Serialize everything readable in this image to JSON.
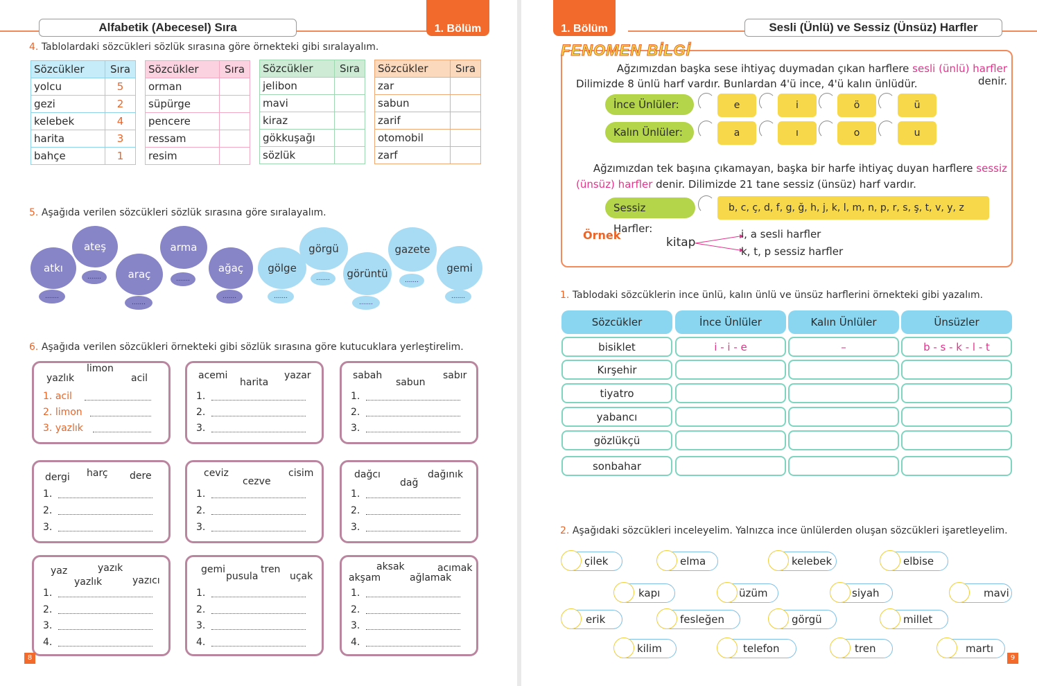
{
  "left": {
    "chapter": "1. Bölüm",
    "title": "Alfabetik (Abecesel) Sıra",
    "q4": {
      "num": "4.",
      "text": "Tablolardaki sözcükleri sözlük sırasına göre örnekteki gibi sıralayalım."
    },
    "tables": [
      {
        "h1": "Sözcükler",
        "h2": "Sıra",
        "rows": [
          [
            "yolcu",
            "5"
          ],
          [
            "gezi",
            "2"
          ],
          [
            "kelebek",
            "4"
          ],
          [
            "harita",
            "3"
          ],
          [
            "bahçe",
            "1"
          ]
        ]
      },
      {
        "h1": "Sözcükler",
        "h2": "Sıra",
        "rows": [
          [
            "orman",
            ""
          ],
          [
            "süpürge",
            ""
          ],
          [
            "pencere",
            ""
          ],
          [
            "ressam",
            ""
          ],
          [
            "resim",
            ""
          ]
        ]
      },
      {
        "h1": "Sözcükler",
        "h2": "Sıra",
        "rows": [
          [
            "jelibon",
            ""
          ],
          [
            "mavi",
            ""
          ],
          [
            "kiraz",
            ""
          ],
          [
            "gökkuşağı",
            ""
          ],
          [
            "sözlük",
            ""
          ]
        ]
      },
      {
        "h1": "Sözcükler",
        "h2": "Sıra",
        "rows": [
          [
            "zar",
            ""
          ],
          [
            "sabun",
            ""
          ],
          [
            "zarif",
            ""
          ],
          [
            "otomobil",
            ""
          ],
          [
            "zarf",
            ""
          ]
        ]
      }
    ],
    "q5": {
      "num": "5.",
      "text": "Aşağıda verilen sözcükleri sözlük sırasına göre sıralayalım."
    },
    "stones_purple": [
      "atkı",
      "ateş",
      "araç",
      "arma",
      "ağaç"
    ],
    "stones_blue": [
      "gölge",
      "görgü",
      "görüntü",
      "gazete",
      "gemi"
    ],
    "blank_dots": ".......",
    "q6": {
      "num": "6.",
      "text": "Aşağıda verilen sözcükleri örnekteki gibi sözlük sırasına göre kutucuklara yerleştirelim."
    },
    "boxes": [
      {
        "words": [
          "yazlık",
          "limon",
          "acil"
        ],
        "nums": [
          "1.",
          "2.",
          "3."
        ],
        "answers": [
          "acil",
          "limon",
          "yazlık"
        ]
      },
      {
        "words": [
          "acemi",
          "harita",
          "yazar"
        ],
        "nums": [
          "1.",
          "2.",
          "3."
        ],
        "answers": [
          "",
          "",
          ""
        ]
      },
      {
        "words": [
          "sabah",
          "sabun",
          "sabır"
        ],
        "nums": [
          "1.",
          "2.",
          "3."
        ],
        "answers": [
          "",
          "",
          ""
        ]
      },
      {
        "words": [
          "dergi",
          "harç",
          "dere"
        ],
        "nums": [
          "1.",
          "2.",
          "3."
        ],
        "answers": [
          "",
          "",
          ""
        ]
      },
      {
        "words": [
          "ceviz",
          "cezve",
          "cisim"
        ],
        "nums": [
          "1.",
          "2.",
          "3."
        ],
        "answers": [
          "",
          "",
          ""
        ]
      },
      {
        "words": [
          "dağcı",
          "dağ",
          "dağınık"
        ],
        "nums": [
          "1.",
          "2.",
          "3."
        ],
        "answers": [
          "",
          "",
          ""
        ]
      },
      {
        "words": [
          "yaz",
          "yazık",
          "yazlık",
          "yazıcı"
        ],
        "nums": [
          "1.",
          "2.",
          "3.",
          "4."
        ],
        "answers": [
          "",
          "",
          "",
          ""
        ]
      },
      {
        "words": [
          "gemi",
          "pusula",
          "tren",
          "uçak"
        ],
        "nums": [
          "1.",
          "2.",
          "3.",
          "4."
        ],
        "answers": [
          "",
          "",
          "",
          ""
        ]
      },
      {
        "words": [
          "akşam",
          "aksak",
          "ağlamak",
          "acımak"
        ],
        "nums": [
          "1.",
          "2.",
          "3.",
          "4."
        ],
        "answers": [
          "",
          "",
          "",
          ""
        ]
      }
    ],
    "page": "8"
  },
  "right": {
    "chapter": "1. Bölüm",
    "title": "Sesli (Ünlü) ve Sessiz (Ünsüz) Harfler",
    "fenomen": "FENOMEN BİLGİ",
    "p1a": "Ağzımızdan başka sese ihtiyaç duymadan çıkan harflere ",
    "p1b": "sesli (ünlü) harfler",
    "p1c": " denir.",
    "p1d": "Dilimizde 8 ünlü harf vardır. Bunlardan 4'ü ince, 4'ü kalın ünlüdür.",
    "ince_label": "İnce Ünlüler:",
    "ince": [
      "e",
      "i",
      "ö",
      "ü"
    ],
    "kalin_label": "Kalın Ünlüler:",
    "kalin": [
      "a",
      "ı",
      "o",
      "u"
    ],
    "p2a": "Ağzımızdan tek başına çıkamayan, başka bir harfe ihtiyaç duyan harflere ",
    "p2b": "sessiz",
    "p2c": "(ünsüz) harfler",
    "p2d": " denir. Dilimizde 21 tane sessiz (ünsüz) harf vardır.",
    "sessiz_label": "Sessiz Harfler:",
    "sessiz": "b, c, ç, d, f, g, ğ, h, j, k, l, m, n, p, r, s, ş, t, v, y, z",
    "ornek": "Örnek",
    "kitap": "kitap",
    "kitap_a": "i, a sesli harfler",
    "kitap_b": "k, t, p sessiz harfler",
    "q1": {
      "num": "1.",
      "text": "Tablodaki sözcüklerin ince ünlü, kalın ünlü ve ünsüz harflerini örnekteki gibi yazalım."
    },
    "vtable": {
      "headers": [
        "Sözcükler",
        "İnce Ünlüler",
        "Kalın Ünlüler",
        "Ünsüzler"
      ],
      "rows": [
        [
          "bisiklet",
          "i - i - e",
          "–",
          "b - s - k - l - t"
        ],
        [
          "Kırşehir",
          "",
          "",
          ""
        ],
        [
          "tiyatro",
          "",
          "",
          ""
        ],
        [
          "yabancı",
          "",
          "",
          ""
        ],
        [
          "gözlükçü",
          "",
          "",
          ""
        ],
        [
          "sonbahar",
          "",
          "",
          ""
        ]
      ]
    },
    "q2": {
      "num": "2.",
      "text": "Aşağıdaki sözcükleri inceleyelim. Yalnızca ince ünlülerden oluşan sözcükleri işaretleyelim."
    },
    "options": [
      "çilek",
      "elma",
      "kelebek",
      "elbise",
      "kapı",
      "üzüm",
      "siyah",
      "mavi",
      "erik",
      "fesleğen",
      "görgü",
      "millet",
      "kilim",
      "telefon",
      "tren",
      "martı"
    ],
    "page": "9"
  },
  "colors": {
    "orange": "#f26b2c",
    "purple": "#8784c8",
    "blue": "#a8dbf4",
    "pink": "#e4338c",
    "green": "#b4d44a",
    "yellow": "#f6d84a"
  }
}
